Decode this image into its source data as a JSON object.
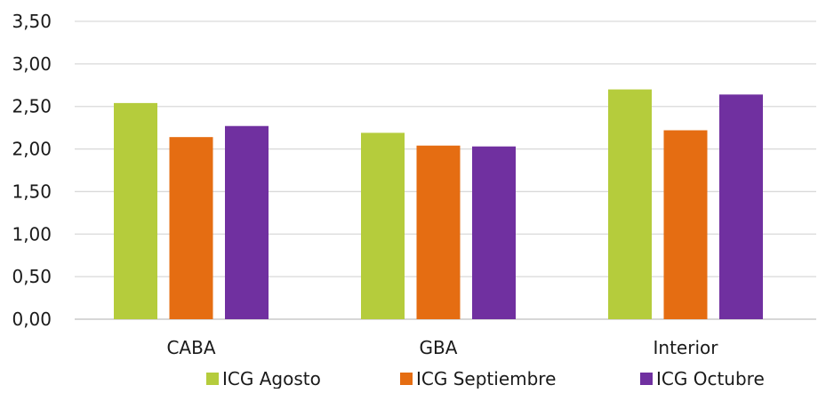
{
  "chart_data": {
    "type": "bar",
    "categories": [
      "CABA",
      "GBA",
      "Interior"
    ],
    "series": [
      {
        "name": "ICG Agosto",
        "values": [
          2.54,
          2.19,
          2.7
        ],
        "color": "#b5cc3c"
      },
      {
        "name": "ICG Septiembre",
        "values": [
          2.14,
          2.04,
          2.22
        ],
        "color": "#e56d12"
      },
      {
        "name": "ICG Octubre",
        "values": [
          2.27,
          2.03,
          2.64
        ],
        "color": "#7030a0"
      }
    ],
    "ylim": [
      0,
      3.5
    ],
    "yticks": [
      0,
      0.5,
      1.0,
      1.5,
      2.0,
      2.5,
      3.0,
      3.5
    ],
    "ytick_labels": [
      "0,00",
      "0,50",
      "1,00",
      "1,50",
      "2,00",
      "2,50",
      "3,00",
      "3,50"
    ],
    "grid": true,
    "legend_position": "bottom",
    "title": "",
    "xlabel": "",
    "ylabel": ""
  }
}
